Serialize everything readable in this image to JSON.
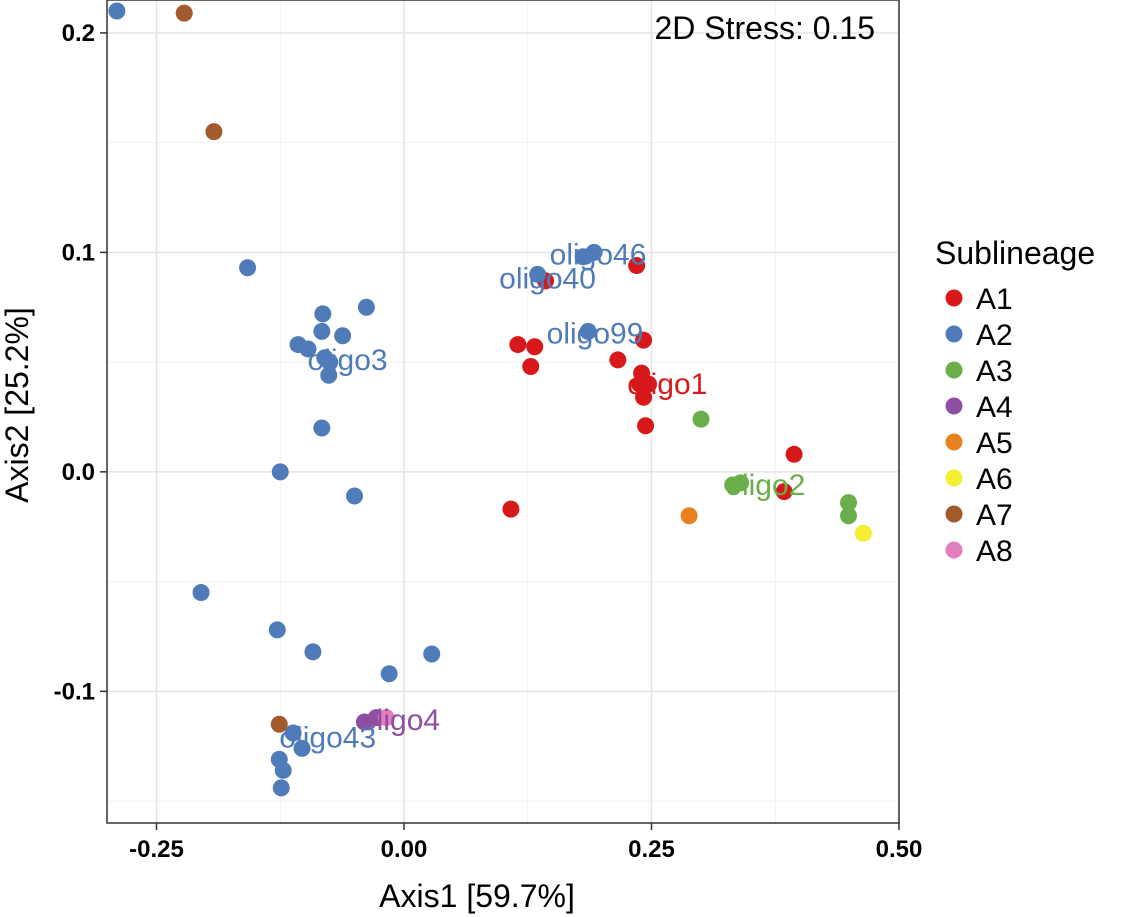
{
  "chart_data": {
    "type": "scatter",
    "title": "",
    "annotation": "2D Stress: 0.15",
    "xlabel": "Axis1 [59.7%]",
    "ylabel": "Axis2  [25.2%]",
    "xlim": [
      -0.3,
      0.5
    ],
    "ylim": [
      -0.16,
      0.215
    ],
    "xticks": [
      -0.25,
      0.0,
      0.25,
      0.5
    ],
    "xtick_labels": [
      "-0.25",
      "0.00",
      "0.25",
      "0.50"
    ],
    "yticks": [
      -0.1,
      0.0,
      0.1,
      0.2
    ],
    "ytick_labels": [
      "-0.1",
      "0.0",
      "0.1",
      "0.2"
    ],
    "grid": true,
    "legend": {
      "title": "Sublineage",
      "position": "right"
    },
    "series": [
      {
        "name": "A1",
        "color": "#d7191c",
        "points": [
          [
            0.143,
            0.087
          ],
          [
            0.235,
            0.094
          ],
          [
            0.115,
            0.058
          ],
          [
            0.132,
            0.057
          ],
          [
            0.128,
            0.048
          ],
          [
            0.216,
            0.051
          ],
          [
            0.24,
            0.045
          ],
          [
            0.238,
            0.04
          ],
          [
            0.247,
            0.04
          ],
          [
            0.242,
            0.034
          ],
          [
            0.244,
            0.021
          ],
          [
            0.242,
            0.06
          ],
          [
            0.108,
            -0.017
          ],
          [
            0.394,
            0.008
          ],
          [
            0.384,
            -0.009
          ]
        ]
      },
      {
        "name": "A2",
        "color": "#4f7cb8",
        "points": [
          [
            -0.29,
            0.21
          ],
          [
            -0.158,
            0.093
          ],
          [
            -0.082,
            0.072
          ],
          [
            -0.038,
            0.075
          ],
          [
            -0.083,
            0.064
          ],
          [
            -0.062,
            0.062
          ],
          [
            -0.107,
            0.058
          ],
          [
            -0.097,
            0.056
          ],
          [
            -0.08,
            0.052
          ],
          [
            -0.075,
            0.05
          ],
          [
            -0.076,
            0.044
          ],
          [
            -0.083,
            0.02
          ],
          [
            -0.125,
            0.0
          ],
          [
            -0.05,
            -0.011
          ],
          [
            -0.205,
            -0.055
          ],
          [
            -0.128,
            -0.072
          ],
          [
            -0.092,
            -0.082
          ],
          [
            0.028,
            -0.083
          ],
          [
            -0.015,
            -0.092
          ],
          [
            -0.112,
            -0.119
          ],
          [
            -0.103,
            -0.126
          ],
          [
            -0.126,
            -0.131
          ],
          [
            -0.122,
            -0.136
          ],
          [
            -0.124,
            -0.144
          ],
          [
            0.192,
            0.1
          ],
          [
            0.181,
            0.098
          ],
          [
            0.135,
            0.09
          ],
          [
            0.186,
            0.064
          ]
        ]
      },
      {
        "name": "A3",
        "color": "#6aaf4a",
        "points": [
          [
            0.3,
            0.024
          ],
          [
            0.34,
            -0.005
          ],
          [
            0.332,
            -0.006
          ],
          [
            0.449,
            -0.014
          ],
          [
            0.449,
            -0.02
          ]
        ]
      },
      {
        "name": "A4",
        "color": "#8e4fa2",
        "points": [
          [
            -0.04,
            -0.114
          ],
          [
            -0.028,
            -0.112
          ]
        ]
      },
      {
        "name": "A5",
        "color": "#e8821e",
        "points": [
          [
            0.288,
            -0.02
          ]
        ]
      },
      {
        "name": "A6",
        "color": "#f5ee33",
        "points": [
          [
            0.464,
            -0.028
          ]
        ]
      },
      {
        "name": "A7",
        "color": "#a05a2c",
        "points": [
          [
            -0.222,
            0.209
          ],
          [
            -0.192,
            0.155
          ],
          [
            -0.126,
            -0.115
          ]
        ]
      },
      {
        "name": "A8",
        "color": "#e37fbf",
        "points": [
          [
            -0.018,
            -0.112
          ]
        ]
      }
    ],
    "labels": [
      {
        "text": "oligo46",
        "x": 0.196,
        "y": 0.099,
        "series": "A2"
      },
      {
        "text": "oligo40",
        "x": 0.145,
        "y": 0.088,
        "series": "A2"
      },
      {
        "text": "oligo99",
        "x": 0.193,
        "y": 0.063,
        "series": "A2"
      },
      {
        "text": "oligo3",
        "x": -0.057,
        "y": 0.051,
        "series": "A2"
      },
      {
        "text": "oligo1",
        "x": 0.266,
        "y": 0.04,
        "series": "A1"
      },
      {
        "text": "oligo2",
        "x": 0.365,
        "y": -0.006,
        "series": "A3"
      },
      {
        "text": "oligo4",
        "x": -0.004,
        "y": -0.113,
        "series": "A4"
      },
      {
        "text": "oligo43",
        "x": -0.077,
        "y": -0.121,
        "series": "A2"
      }
    ]
  }
}
